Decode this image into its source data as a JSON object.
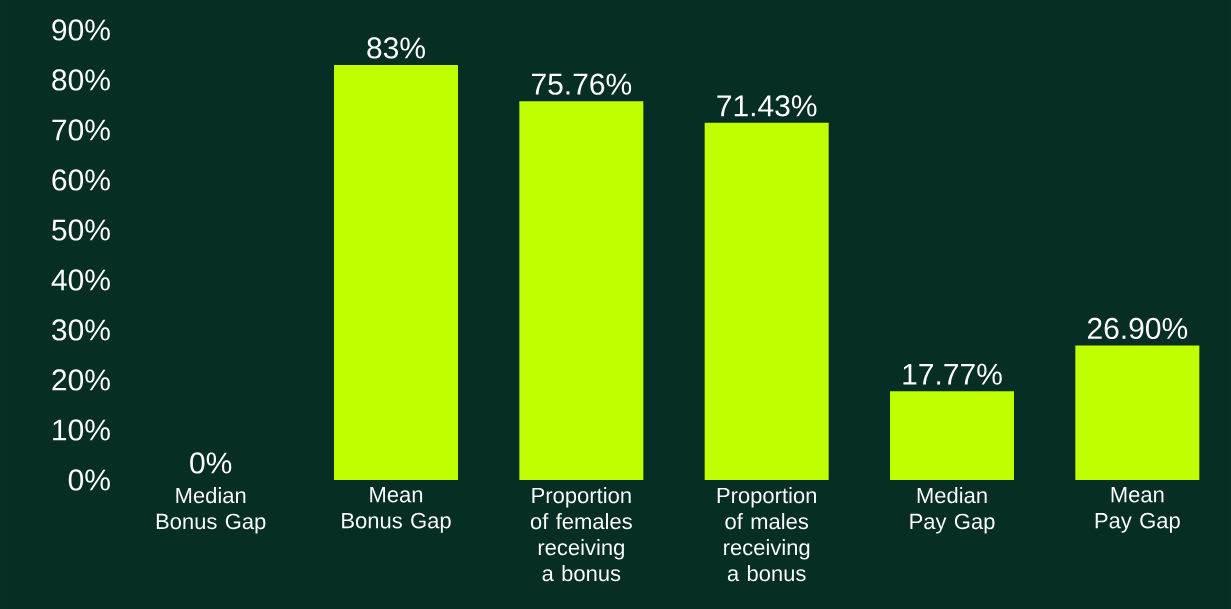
{
  "chart_data": {
    "type": "bar",
    "categories": [
      "Median Bonus Gap",
      "Mean Bonus Gap",
      "Proportion of females receiving a bonus",
      "Proportion of males receiving a bonus",
      "Median Pay Gap",
      "Mean Pay Gap"
    ],
    "values": [
      0,
      83,
      75.76,
      71.43,
      17.77,
      26.9
    ],
    "value_labels": [
      "0%",
      "83%",
      "75.76%",
      "71.43%",
      "17.77%",
      "26.90%"
    ],
    "color": "#bfff00",
    "ylim": [
      0,
      90
    ],
    "yticks": [
      {
        "value": 0,
        "label": "0%"
      },
      {
        "value": 10,
        "label": "10%"
      },
      {
        "value": 20,
        "label": "20%"
      },
      {
        "value": 30,
        "label": "30%"
      },
      {
        "value": 40,
        "label": "40%"
      },
      {
        "value": 50,
        "label": "50%"
      },
      {
        "value": 60,
        "label": "60%"
      },
      {
        "value": 70,
        "label": "70%"
      },
      {
        "value": 80,
        "label": "80%"
      },
      {
        "value": 90,
        "label": "90%"
      }
    ],
    "grid": false
  }
}
